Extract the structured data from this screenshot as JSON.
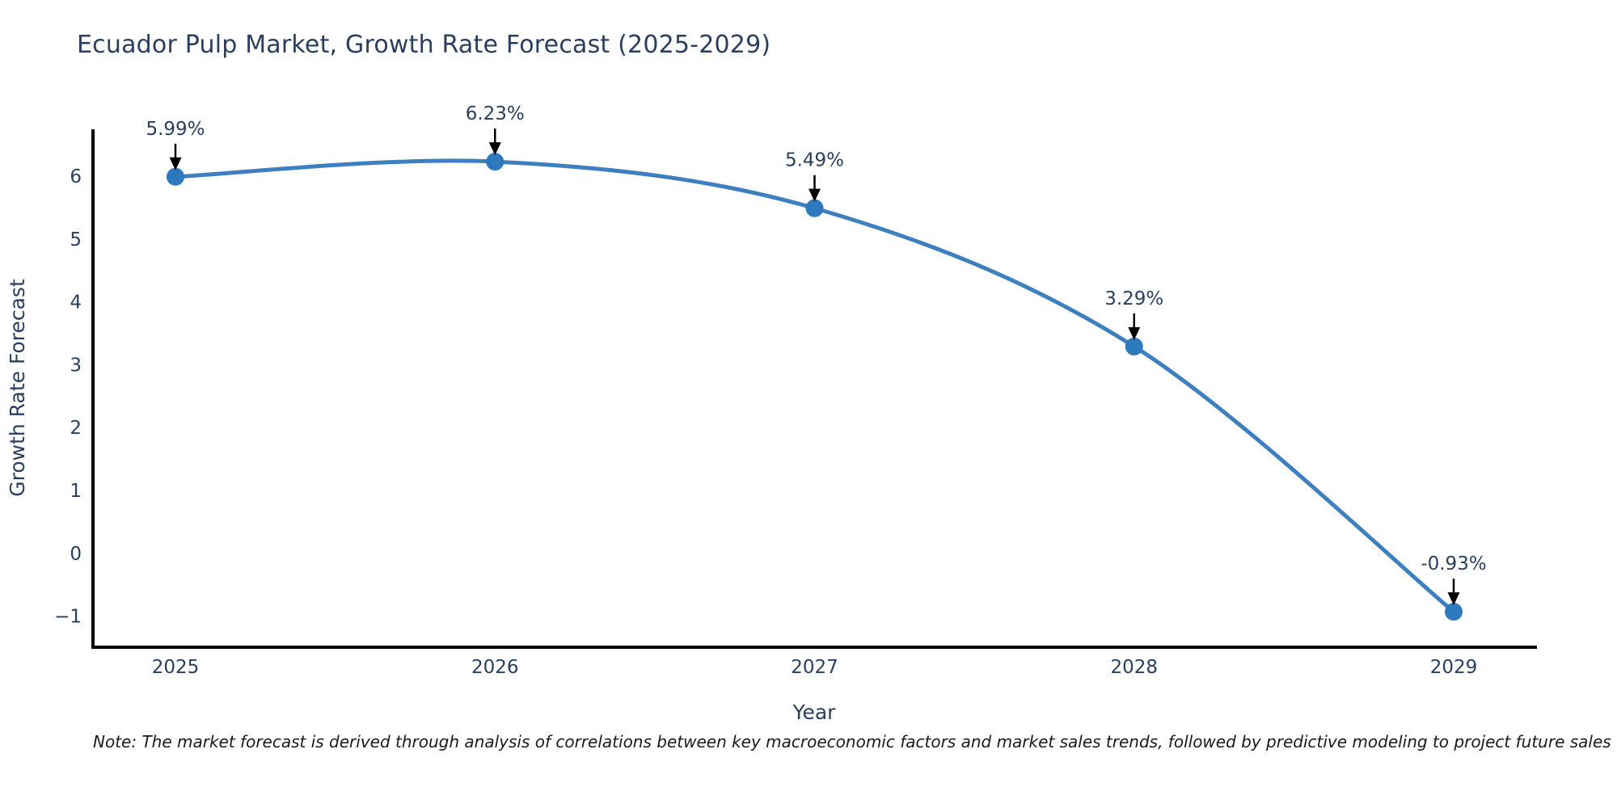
{
  "note": "Note: The market forecast is derived through analysis of correlations between key macroeconomic factors and market sales trends, followed by predictive modeling to project future sales",
  "chart_data": {
    "type": "line",
    "title": "Ecuador Pulp Market, Growth Rate Forecast (2025-2029)",
    "xlabel": "Year",
    "ylabel": "Growth Rate Forecast",
    "categories": [
      "2025",
      "2026",
      "2027",
      "2028",
      "2029"
    ],
    "x": [
      2025,
      2026,
      2027,
      2028,
      2029
    ],
    "values": [
      5.99,
      6.23,
      5.49,
      3.29,
      -0.93
    ],
    "point_labels": [
      "5.99%",
      "6.23%",
      "5.49%",
      "3.29%",
      "-0.93%"
    ],
    "yticks": [
      -1,
      0,
      1,
      2,
      3,
      4,
      5,
      6
    ],
    "ytick_labels": [
      "−1",
      "0",
      "1",
      "2",
      "3",
      "4",
      "5",
      "6"
    ],
    "ylim": [
      -1.5,
      6.75
    ],
    "grid": false,
    "legend": "none",
    "line_color": "#3e7fbf",
    "marker_color": "#2e79bd",
    "axis_color": "#000000",
    "annotation_arrow_color": "#000000",
    "text_color": "#2a3f5f"
  }
}
